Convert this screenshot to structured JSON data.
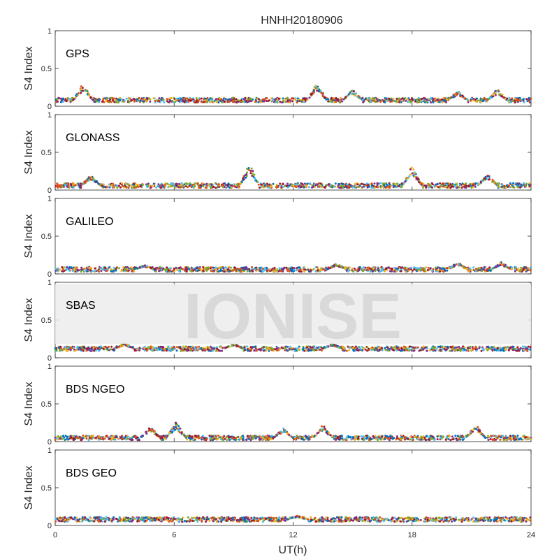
{
  "chart_data": {
    "type": "scatter",
    "title": "HNHH20180906",
    "xlabel": "UT(h)",
    "xlim": [
      0,
      24
    ],
    "xticks": [
      "0",
      "6",
      "12",
      "18",
      "24"
    ],
    "ylabel": "S4 Index",
    "ylim": [
      0,
      1
    ],
    "yticks": [
      "0",
      "0.5",
      "1"
    ],
    "watermark": "IONISE",
    "colors": [
      "#0072BD",
      "#D95319",
      "#EDB120",
      "#7E2F8E",
      "#77AC30",
      "#4DBEEE",
      "#A2142F"
    ],
    "panels": [
      {
        "label": "GPS",
        "base_level": 0.08,
        "peaks": [
          {
            "t": 1.4,
            "s4": 0.3
          },
          {
            "t": 13.2,
            "s4": 0.31
          },
          {
            "t": 15.0,
            "s4": 0.22
          },
          {
            "t": 20.3,
            "s4": 0.2
          },
          {
            "t": 22.3,
            "s4": 0.23
          }
        ]
      },
      {
        "label": "GLONASS",
        "base_level": 0.06,
        "peaks": [
          {
            "t": 1.8,
            "s4": 0.2
          },
          {
            "t": 9.8,
            "s4": 0.35
          },
          {
            "t": 18.0,
            "s4": 0.32
          },
          {
            "t": 21.8,
            "s4": 0.22
          }
        ]
      },
      {
        "label": "GALILEO",
        "base_level": 0.06,
        "peaks": [
          {
            "t": 4.5,
            "s4": 0.12
          },
          {
            "t": 14.2,
            "s4": 0.14
          },
          {
            "t": 20.3,
            "s4": 0.16
          },
          {
            "t": 22.5,
            "s4": 0.16
          }
        ]
      },
      {
        "label": "SBAS",
        "base_level": 0.12,
        "peaks": [
          {
            "t": 3.5,
            "s4": 0.2
          },
          {
            "t": 9.0,
            "s4": 0.19
          },
          {
            "t": 14.0,
            "s4": 0.19
          }
        ]
      },
      {
        "label": "BDS NGEO",
        "base_level": 0.05,
        "peaks": [
          {
            "t": 4.8,
            "s4": 0.2
          },
          {
            "t": 6.1,
            "s4": 0.26
          },
          {
            "t": 11.5,
            "s4": 0.18
          },
          {
            "t": 13.5,
            "s4": 0.22
          },
          {
            "t": 21.2,
            "s4": 0.24
          }
        ]
      },
      {
        "label": "BDS GEO",
        "base_level": 0.08,
        "peaks": [
          {
            "t": 12.2,
            "s4": 0.13
          }
        ]
      }
    ]
  }
}
